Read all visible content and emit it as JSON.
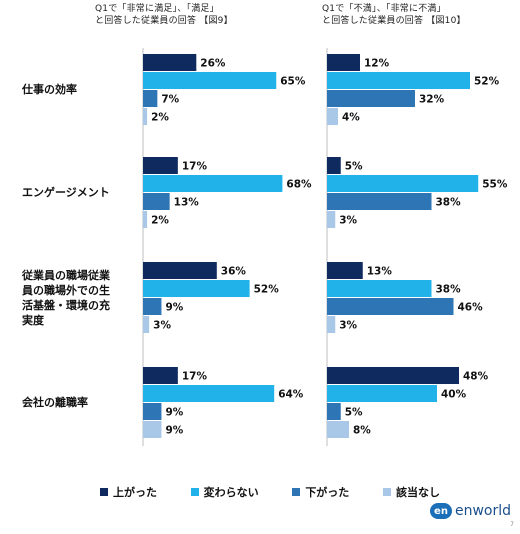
{
  "titles": {
    "left_line1": "Q1で「非常に満足」、「満足」",
    "left_line2": "と回答した従業員の回答 【図9】",
    "right_line1": "Q1で「不満」、「非常に不満」",
    "right_line2": "と回答した従業員の回答 【図10】"
  },
  "categories": [
    "仕事の効率",
    "エンゲージメント",
    "従業員の職場従業員の職場外での生活基盤・環境の充実度",
    "会社の離職率"
  ],
  "category_lines": [
    [
      "仕事の効率"
    ],
    [
      "エンゲージメント"
    ],
    [
      "従業員の職場従業",
      "員の職場外での生",
      "活基盤・環境の充",
      "実度"
    ],
    [
      "会社の離職率"
    ]
  ],
  "legend": [
    "上がった",
    "変わらない",
    "下がった",
    "該当なし"
  ],
  "colors": [
    "#0f2a5e",
    "#20b2e8",
    "#2e75b6",
    "#a9c8e8"
  ],
  "logo": {
    "mark": "en",
    "text": "enworld"
  },
  "page_number": "7",
  "chart_data": [
    {
      "type": "bar",
      "orientation": "horizontal",
      "title": "Q1で「非常に満足」、「満足」と回答した従業員の回答 【図9】",
      "categories": [
        "仕事の効率",
        "エンゲージメント",
        "従業員の職場従業員の職場外での生活基盤・環境の充実度",
        "会社の離職率"
      ],
      "series": [
        {
          "name": "上がった",
          "values": [
            26,
            17,
            36,
            17
          ]
        },
        {
          "name": "変わらない",
          "values": [
            65,
            68,
            52,
            64
          ]
        },
        {
          "name": "下がった",
          "values": [
            7,
            13,
            9,
            9
          ]
        },
        {
          "name": "該当なし",
          "values": [
            2,
            2,
            3,
            9
          ]
        }
      ],
      "unit": "%",
      "xlim": [
        0,
        100
      ],
      "grid": false,
      "legend_position": "bottom"
    },
    {
      "type": "bar",
      "orientation": "horizontal",
      "title": "Q1で「不満」、「非常に不満」と回答した従業員の回答 【図10】",
      "categories": [
        "仕事の効率",
        "エンゲージメント",
        "従業員の職場従業員の職場外での生活基盤・環境の充実度",
        "会社の離職率"
      ],
      "series": [
        {
          "name": "上がった",
          "values": [
            12,
            5,
            13,
            48
          ]
        },
        {
          "name": "変わらない",
          "values": [
            52,
            55,
            38,
            40
          ]
        },
        {
          "name": "下がった",
          "values": [
            32,
            38,
            46,
            5
          ]
        },
        {
          "name": "該当なし",
          "values": [
            4,
            3,
            3,
            8
          ]
        }
      ],
      "unit": "%",
      "xlim": [
        0,
        100
      ],
      "grid": false,
      "legend_position": "bottom"
    }
  ]
}
